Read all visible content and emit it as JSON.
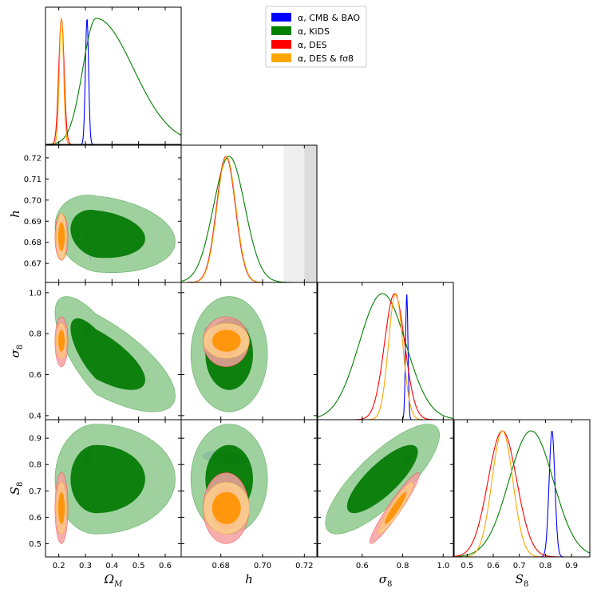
{
  "chart_data": {
    "type": "corner-plot",
    "title": "",
    "legend": {
      "placement": "top-right",
      "entries": [
        {
          "label": "α, CMB & BAO",
          "color": "#0000ff"
        },
        {
          "label": "α, KiDS",
          "color": "#008000"
        },
        {
          "label": "α, DES",
          "color": "#ff0000"
        },
        {
          "label": "α, DES & fσ8",
          "color": "#ffa500"
        }
      ]
    },
    "parameters": [
      {
        "name": "Omega_M",
        "label": "Ω_M",
        "range": [
          0.15,
          0.66
        ],
        "ticks": [
          0.2,
          0.3,
          0.4,
          0.5,
          0.6
        ],
        "tick_labels": [
          "0.2",
          "0.3",
          "0.4",
          "0.5",
          "0.6"
        ]
      },
      {
        "name": "h",
        "label": "h",
        "range": [
          0.661,
          0.726
        ],
        "ticks": [
          0.67,
          0.68,
          0.69,
          0.7,
          0.71,
          0.72
        ],
        "tick_labels": [
          "0.67",
          "0.68",
          "0.69",
          "0.70",
          "0.71",
          "0.72"
        ],
        "x_tick_labels": [
          "0.68",
          "0.70",
          "0.72"
        ]
      },
      {
        "name": "sigma_8",
        "label": "σ_8",
        "range": [
          0.38,
          1.05
        ],
        "ticks": [
          0.4,
          0.6,
          0.8,
          1.0
        ],
        "tick_labels": [
          "0.4",
          "0.6",
          "0.8",
          "1.0"
        ],
        "x_tick_labels": [
          "0.6",
          "0.8",
          "1.0"
        ]
      },
      {
        "name": "S_8",
        "label": "S_8",
        "range": [
          0.45,
          0.97
        ],
        "ticks": [
          0.5,
          0.6,
          0.7,
          0.8,
          0.9
        ],
        "tick_labels": [
          "0.5",
          "0.6",
          "0.7",
          "0.8",
          "0.9"
        ]
      }
    ],
    "prior_bands": {
      "parameter": "h",
      "bands": [
        {
          "range": [
            0.71,
            0.72
          ],
          "shade": "light"
        },
        {
          "range": [
            0.72,
            0.73
          ],
          "shade": "dark"
        }
      ]
    },
    "series": [
      {
        "name": "α, CMB & BAO",
        "color": "#0000ff",
        "fill_outer": "#7b7bfd",
        "fill_inner": "#0000ff",
        "mean": {
          "Omega_M": 0.306,
          "h": 0.6825,
          "sigma_8": 0.82,
          "S_8": 0.825
        },
        "sd": {
          "Omega_M": 0.006,
          "h": 0.0045,
          "sigma_8": 0.006,
          "S_8": 0.011
        },
        "corr": {
          "Omega_M|h": -0.985,
          "Omega_M|sigma_8": 0.3,
          "Omega_M|S_8": 0.3,
          "h|sigma_8": -0.1,
          "h|S_8": -0.3,
          "sigma_8|S_8": 0.6
        },
        "marginal_shape": {
          "Omega_M": "sharp",
          "sigma_8": "sharp",
          "S_8": "sharp"
        }
      },
      {
        "name": "α, KiDS",
        "color": "#008000",
        "fill_outer": "#8ec98e",
        "fill_inner": "#007800",
        "mean": {
          "Omega_M": 0.34,
          "h": 0.684,
          "sigma_8": 0.7,
          "S_8": 0.745
        },
        "sd": {
          "Omega_M": 0.09,
          "h": 0.0075,
          "sigma_8": 0.115,
          "S_8": 0.085
        },
        "corr": {
          "Omega_M|h": -0.2,
          "Omega_M|sigma_8": -0.72,
          "Omega_M|S_8": 0.0,
          "h|sigma_8": 0.0,
          "h|S_8": 0.0,
          "sigma_8|S_8": 0.8
        },
        "marginal_shape": {
          "Omega_M": "skewed-right",
          "sigma_8": "gaussian",
          "S_8": "gaussian"
        }
      },
      {
        "name": "α, DES",
        "color": "#ff0000",
        "fill_outer": "#f4a0a0",
        "fill_inner": "#f06868",
        "mean": {
          "Omega_M": 0.21,
          "h": 0.6825,
          "sigma_8": 0.76,
          "S_8": 0.635
        },
        "sd": {
          "Omega_M": 0.01,
          "h": 0.0045,
          "sigma_8": 0.05,
          "S_8": 0.055
        },
        "corr": {
          "Omega_M|h": 0.0,
          "Omega_M|sigma_8": 0.0,
          "Omega_M|S_8": 0.0,
          "h|sigma_8": 0.0,
          "h|S_8": 0.0,
          "sigma_8|S_8": 0.95
        },
        "marginal_shape": {
          "Omega_M": "sharp",
          "sigma_8": "gaussian",
          "S_8": "gaussian"
        }
      },
      {
        "name": "α, DES & fσ8",
        "color": "#ffa500",
        "fill_outer": "#fccf8c",
        "fill_inner": "#ff9200",
        "mean": {
          "Omega_M": 0.21,
          "h": 0.6827,
          "sigma_8": 0.765,
          "S_8": 0.635
        },
        "sd": {
          "Omega_M": 0.008,
          "h": 0.0045,
          "sigma_8": 0.035,
          "S_8": 0.04
        },
        "corr": {
          "Omega_M|h": 0.0,
          "Omega_M|sigma_8": 0.0,
          "Omega_M|S_8": 0.0,
          "h|sigma_8": 0.0,
          "h|S_8": 0.0,
          "sigma_8|S_8": 0.93
        },
        "marginal_shape": {
          "Omega_M": "sharp",
          "sigma_8": "gaussian",
          "S_8": "gaussian"
        }
      }
    ],
    "contour_levels": [
      "68%",
      "95%"
    ]
  }
}
